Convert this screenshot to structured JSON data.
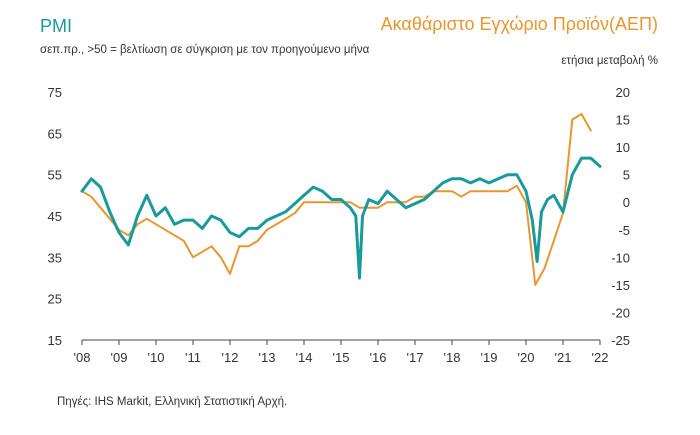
{
  "header": {
    "left_title": "PMI",
    "left_subtitle": "σεπ.πρ., >50 = βελτίωση σε σύγκριση με τον προηγούμενο μήνα",
    "right_title": "Ακαθάριστο Εγχώριο Προϊόν(ΑΕΠ)",
    "right_subtitle": "ετήσια μεταβολή %"
  },
  "footer": {
    "source": "Πηγές: IHS Markit, Ελληνική Στατιστική Αρχή."
  },
  "chart_data": {
    "type": "line",
    "x_ticks": [
      "'08",
      "'09",
      "'10",
      "'11",
      "'12",
      "'13",
      "'14",
      "'15",
      "'16",
      "'17",
      "'18",
      "'19",
      "'20",
      "'21",
      "'22"
    ],
    "y_left": {
      "ticks": [
        75,
        65,
        55,
        45,
        35,
        25,
        15
      ],
      "ylim": [
        15,
        75
      ]
    },
    "y_right": {
      "ticks": [
        20,
        15,
        10,
        5,
        0,
        -5,
        -10,
        -15,
        -20,
        -25
      ],
      "ylim": [
        -25,
        20
      ]
    },
    "colors": {
      "pmi": "#1a9a9a",
      "gdp": "#e8962e"
    },
    "series": [
      {
        "axis": "left",
        "x": [
          2008.0,
          2008.25,
          2008.5,
          2008.75,
          2009.0,
          2009.25,
          2009.5,
          2009.75,
          2010.0,
          2010.25,
          2010.5,
          2010.75,
          2011.0,
          2011.25,
          2011.5,
          2011.75,
          2012.0,
          2012.25,
          2012.5,
          2012.75,
          2013.0,
          2013.25,
          2013.5,
          2013.75,
          2014.0,
          2014.25,
          2014.5,
          2014.75,
          2015.0,
          2015.25,
          2015.4,
          2015.5,
          2015.58,
          2015.75,
          2016.0,
          2016.25,
          2016.5,
          2016.75,
          2017.0,
          2017.25,
          2017.5,
          2017.75,
          2018.0,
          2018.25,
          2018.5,
          2018.75,
          2019.0,
          2019.25,
          2019.5,
          2019.75,
          2020.0,
          2020.17,
          2020.3,
          2020.42,
          2020.58,
          2020.75,
          2021.0,
          2021.25,
          2021.5,
          2021.75,
          2022.0
        ],
        "y": [
          51,
          54,
          52,
          46,
          41,
          38,
          45,
          50,
          45,
          47,
          43,
          44,
          44,
          42,
          45,
          44,
          41,
          40,
          42,
          42,
          44,
          45,
          46,
          48,
          50,
          52,
          51,
          49,
          49,
          47,
          45,
          30,
          45,
          49,
          48,
          51,
          49,
          47,
          48,
          49,
          51,
          53,
          54,
          54,
          53,
          54,
          53,
          54,
          55,
          55,
          51,
          44,
          34,
          46,
          49,
          50,
          46,
          55,
          59,
          59,
          57
        ]
      },
      {
        "axis": "right",
        "x": [
          2008.0,
          2008.25,
          2008.5,
          2008.75,
          2009.0,
          2009.25,
          2009.5,
          2009.75,
          2010.0,
          2010.25,
          2010.5,
          2010.75,
          2011.0,
          2011.25,
          2011.5,
          2011.75,
          2012.0,
          2012.25,
          2012.5,
          2012.75,
          2013.0,
          2013.25,
          2013.5,
          2013.75,
          2014.0,
          2014.25,
          2014.5,
          2014.75,
          2015.0,
          2015.25,
          2015.5,
          2015.75,
          2016.0,
          2016.25,
          2016.5,
          2016.75,
          2017.0,
          2017.25,
          2017.5,
          2017.75,
          2018.0,
          2018.25,
          2018.5,
          2018.75,
          2019.0,
          2019.25,
          2019.5,
          2019.75,
          2020.0,
          2020.25,
          2020.5,
          2020.75,
          2021.0,
          2021.25,
          2021.5,
          2021.75
        ],
        "y": [
          2,
          1,
          -1,
          -3,
          -5,
          -6,
          -4,
          -3,
          -4,
          -5,
          -6,
          -7,
          -10,
          -9,
          -8,
          -10,
          -13,
          -8,
          -8,
          -7,
          -5,
          -4,
          -3,
          -2,
          0,
          0,
          0,
          0,
          0,
          0,
          -1,
          -1,
          -1,
          0,
          0,
          0,
          1,
          1,
          2,
          2,
          2,
          1,
          2,
          2,
          2,
          2,
          2,
          3,
          0,
          -15,
          -12,
          -7,
          -2,
          15,
          16,
          13
        ]
      }
    ]
  }
}
